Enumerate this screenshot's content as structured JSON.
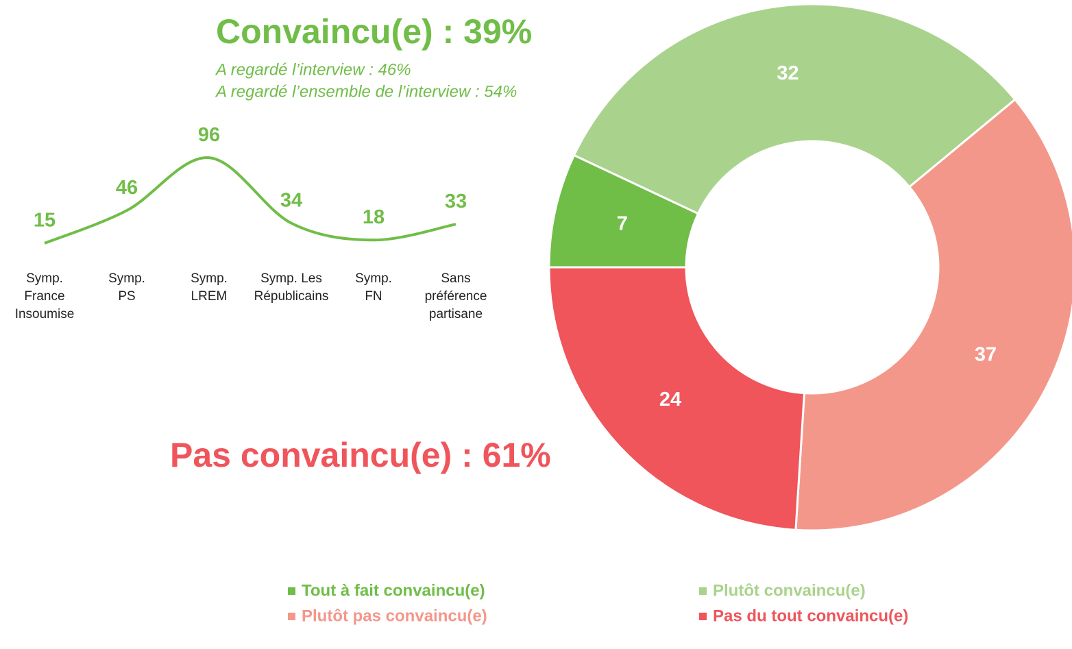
{
  "chart_data": [
    {
      "type": "donut",
      "categories": [
        "Tout à fait convaincu(e)",
        "Plutôt convaincu(e)",
        "Plutôt pas convaincu(e)",
        "Pas du tout convaincu(e)"
      ],
      "values": [
        7,
        32,
        37,
        24
      ],
      "colors": [
        "#70bd48",
        "#a9d38c",
        "#f4978b",
        "#ef555b"
      ],
      "annotations": [
        "Convaincu(e) : 39%",
        "A regardé l’interview : 46%",
        "A regardé l’ensemble de l’interview : 54%",
        "Pas convaincu(e) : 61%"
      ]
    },
    {
      "type": "line",
      "categories": [
        "Symp.\nFrance\nInsoumise",
        "Symp.\nPS",
        "Symp.\nLREM",
        "Symp. Les\nRépublicains",
        "Symp.\nFN",
        "Sans\npréférence\npartisane"
      ],
      "values": [
        15,
        46,
        96,
        34,
        18,
        33
      ],
      "color": "#70bd48",
      "ylim": [
        0,
        100
      ]
    }
  ]
}
